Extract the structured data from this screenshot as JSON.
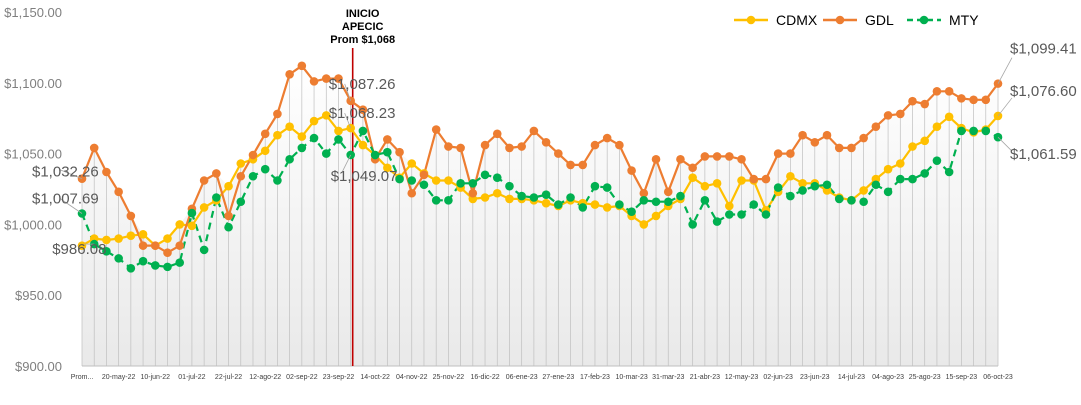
{
  "chart_data": {
    "type": "line",
    "title": "",
    "xlabel": "",
    "ylabel": "",
    "ylim": [
      900,
      1150
    ],
    "y_ticks": [
      "$900.00",
      "$950.00",
      "$1,000.00",
      "$1,050.00",
      "$1,100.00",
      "$1,150.00"
    ],
    "y_tick_values": [
      900,
      950,
      1000,
      1050,
      1100,
      1150
    ],
    "x_tick_labels": [
      "Prom...",
      "20-may-22",
      "10-jun-22",
      "01-jul-22",
      "22-jul-22",
      "12-ago-22",
      "02-sep-22",
      "23-sep-22",
      "14-oct-22",
      "04-nov-22",
      "25-nov-22",
      "16-dic-22",
      "06-ene-23",
      "27-ene-23",
      "17-feb-23",
      "10-mar-23",
      "31-mar-23",
      "21-abr-23",
      "12-may-23",
      "02-jun-23",
      "23-jun-23",
      "14-jul-23",
      "04-ago-23",
      "25-ago-23",
      "15-sep-23",
      "06-oct-23"
    ],
    "x_tick_index": [
      0,
      3,
      6,
      9,
      12,
      15,
      18,
      21,
      24,
      27,
      30,
      33,
      36,
      39,
      42,
      45,
      48,
      51,
      54,
      57,
      60,
      63,
      66,
      69,
      72,
      75
    ],
    "grid": false,
    "drop_lines": true,
    "legend_position": "top-right",
    "colors": {
      "CDMX": "#FFC000",
      "GDL": "#ED7D31",
      "MTY": "#00B050",
      "marker": "#C00000"
    },
    "series": [
      {
        "name": "CDMX",
        "style": "solid",
        "values": [
          985,
          990,
          989,
          990,
          992,
          993,
          985,
          990,
          1000,
          999,
          1012,
          1017,
          1027,
          1043,
          1046,
          1052,
          1063,
          1069,
          1062,
          1073,
          1077,
          1066,
          1068,
          1056,
          1049,
          1040,
          1033,
          1043,
          1036,
          1031,
          1031,
          1026,
          1018,
          1019,
          1022,
          1018,
          1018,
          1017,
          1015,
          1013,
          1017,
          1015,
          1014,
          1012,
          1013,
          1006,
          1000,
          1006,
          1013,
          1018,
          1033,
          1027,
          1029,
          1013,
          1031,
          1031,
          1010,
          1023,
          1034,
          1029,
          1029,
          1024,
          1019,
          1017,
          1024,
          1032,
          1039,
          1043,
          1055,
          1059,
          1069,
          1076,
          1068,
          1065,
          1067,
          1076.6
        ]
      },
      {
        "name": "GDL",
        "style": "solid",
        "values": [
          1032.26,
          1054,
          1037,
          1023,
          1006,
          985,
          985,
          980,
          985,
          1011,
          1031,
          1036,
          1006,
          1034,
          1049,
          1064,
          1078,
          1106,
          1112,
          1101,
          1103,
          1103,
          1087.26,
          1081,
          1046,
          1060,
          1051,
          1022,
          1035,
          1067,
          1055,
          1054,
          1022,
          1056,
          1064,
          1054,
          1055,
          1066,
          1058,
          1050,
          1042,
          1042,
          1056,
          1061,
          1056,
          1038,
          1022,
          1046,
          1023,
          1046,
          1040,
          1048,
          1048,
          1048,
          1046,
          1032,
          1032,
          1050,
          1050,
          1063,
          1058,
          1063,
          1054,
          1054,
          1061,
          1069,
          1077,
          1078,
          1087,
          1085,
          1094,
          1094,
          1089,
          1088,
          1088,
          1099.41
        ]
      },
      {
        "name": "MTY",
        "style": "dashed",
        "values": [
          1007.69,
          986.08,
          981,
          976,
          969,
          974,
          971,
          970,
          973,
          1008,
          982,
          1019,
          998,
          1016,
          1034,
          1039,
          1031,
          1046,
          1054,
          1061,
          1050,
          1060,
          1049.07,
          1066,
          1049,
          1051,
          1032,
          1031,
          1028,
          1017,
          1017,
          1029,
          1029,
          1035,
          1033,
          1027,
          1020,
          1019,
          1021,
          1014,
          1019,
          1012,
          1027,
          1026,
          1014,
          1009,
          1017,
          1016,
          1016,
          1020,
          1000,
          1017,
          1002,
          1007,
          1007,
          1014,
          1007,
          1026,
          1020,
          1024,
          1027,
          1028,
          1018,
          1017,
          1016,
          1028,
          1023,
          1032,
          1032,
          1036,
          1045,
          1037,
          1066,
          1066,
          1066,
          1061.59
        ]
      }
    ],
    "annotations": [
      {
        "label": "$1,032.26",
        "series": "GDL",
        "index": 0
      },
      {
        "label": "$1,007.69",
        "series": "MTY",
        "index": 0
      },
      {
        "label": "$986.08",
        "series": "MTY",
        "index": 1
      },
      {
        "label": "$1,087.26",
        "series": "GDL",
        "index": 22
      },
      {
        "label": "$1,068.23",
        "series": "CDMX",
        "index": 22
      },
      {
        "label": "$1,049.07",
        "series": "MTY",
        "index": 22
      },
      {
        "label": "$1,099.41",
        "series": "GDL",
        "index": 75
      },
      {
        "label": "$1,076.60",
        "series": "CDMX",
        "index": 75
      },
      {
        "label": "$1,061.59",
        "series": "MTY",
        "index": 75
      }
    ],
    "marker_line": {
      "index": 22,
      "label_lines": [
        "INICIO",
        "APECIC",
        "Prom $1,068"
      ]
    }
  }
}
